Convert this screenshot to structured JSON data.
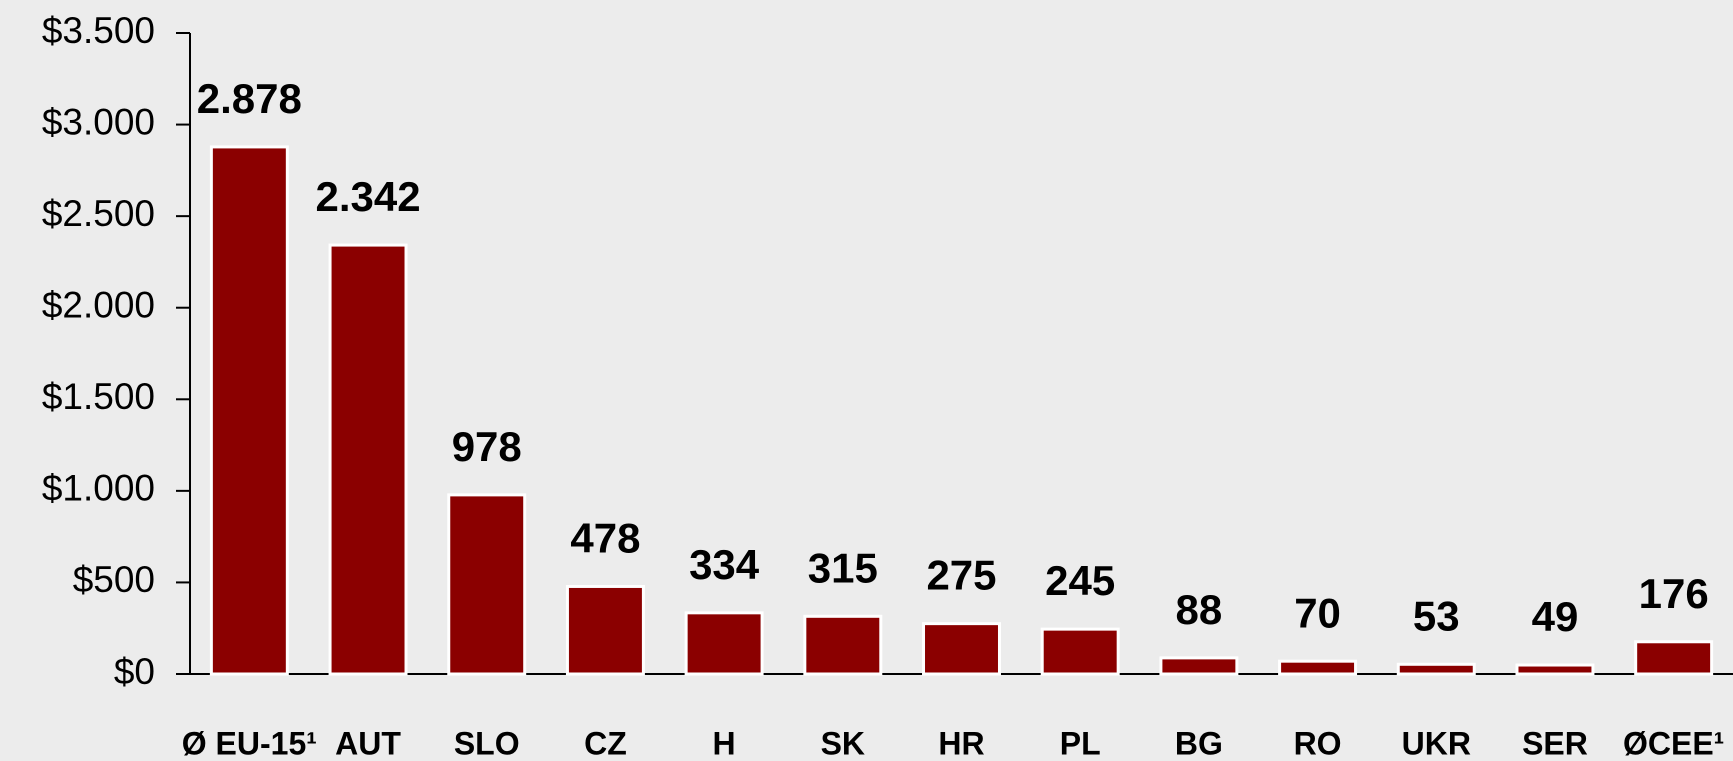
{
  "chart_data": {
    "type": "bar",
    "categories": [
      "Ø EU-15¹",
      "AUT",
      "SLO",
      "CZ",
      "H",
      "SK",
      "HR",
      "PL",
      "BG",
      "RO",
      "UKR",
      "SER",
      "ØCEE¹"
    ],
    "values": [
      2878,
      2342,
      978,
      478,
      334,
      315,
      275,
      245,
      88,
      70,
      53,
      49,
      176
    ],
    "value_labels": [
      "2.878",
      "2.342",
      "978",
      "478",
      "334",
      "315",
      "275",
      "245",
      "88",
      "70",
      "53",
      "49",
      "176"
    ],
    "color": "#8b0000",
    "ylim": [
      0,
      3500
    ],
    "yticks": [
      {
        "value": 0,
        "label": "$0"
      },
      {
        "value": 500,
        "label": "$500"
      },
      {
        "value": 1000,
        "label": "$1.000"
      },
      {
        "value": 1500,
        "label": "$1.500"
      },
      {
        "value": 2000,
        "label": "$2.000"
      },
      {
        "value": 2500,
        "label": "$2.500"
      },
      {
        "value": 3000,
        "label": "$3.000"
      },
      {
        "value": 3500,
        "label": "$3.500"
      }
    ],
    "grid": false
  }
}
